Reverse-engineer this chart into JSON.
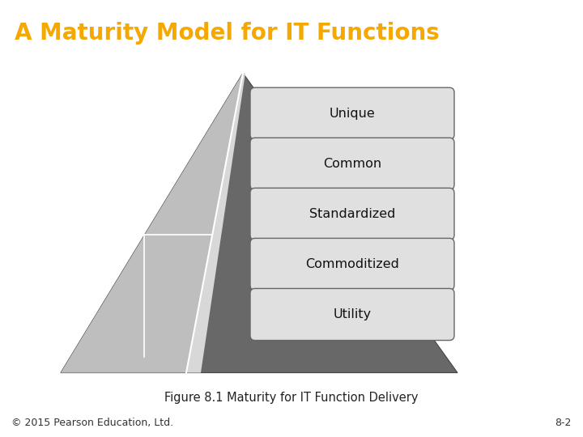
{
  "title": "A Maturity Model for IT Functions",
  "title_color": "#F5A800",
  "title_bg": "#111111",
  "title_fontsize": 20,
  "labels": [
    "Unique",
    "Common",
    "Standardized",
    "Commoditized",
    "Utility"
  ],
  "caption": "Figure 8.1 Maturity for IT Function Delivery",
  "footer_left": "© 2015 Pearson Education, Ltd.",
  "footer_right": "8-2",
  "box_fill": "#E0E0E0",
  "box_edge": "#666666",
  "bg_color": "#FFFFFF",
  "pyramid_dark": "#686868",
  "pyramid_light": "#BEBEBE",
  "pyramid_inner_light": "#D8D8D8"
}
